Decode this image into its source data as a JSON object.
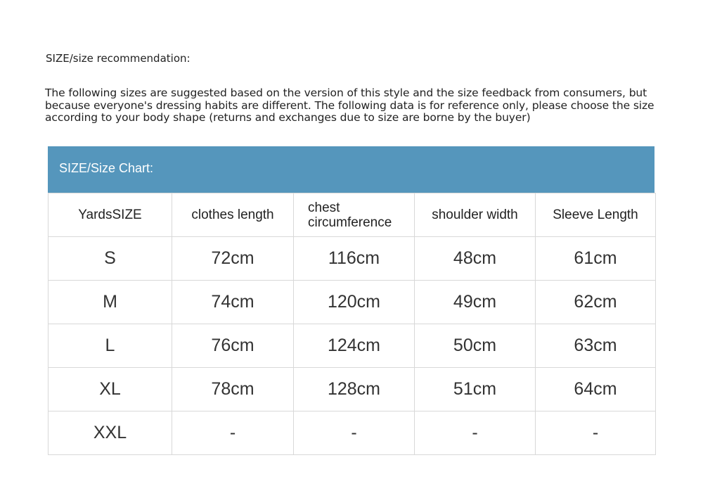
{
  "title": "SIZE/size recommendation:",
  "description": "The following sizes are suggested based on the version of this style and the size feedback from consumers, but because everyone's dressing habits are different. The following data is for reference only, please choose the size according to your body shape (returns and exchanges due to size are borne by the buyer)",
  "chart_title": "SIZE/Size Chart:",
  "header_color": "#5596bc",
  "columns": [
    "YardsSIZE",
    "clothes length",
    "chest circumference",
    "shoulder width",
    "Sleeve Length"
  ],
  "rows": [
    [
      "S",
      "72cm",
      "116cm",
      "48cm",
      "61cm"
    ],
    [
      "M",
      "74cm",
      "120cm",
      "49cm",
      "62cm"
    ],
    [
      "L",
      "76cm",
      "124cm",
      "50cm",
      "63cm"
    ],
    [
      "XL",
      "78cm",
      "128cm",
      "51cm",
      "64cm"
    ],
    [
      "XXL",
      "-",
      "-",
      "-",
      "-"
    ]
  ]
}
